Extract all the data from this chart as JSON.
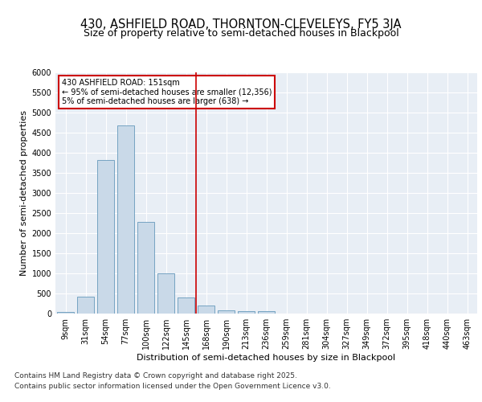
{
  "title": "430, ASHFIELD ROAD, THORNTON-CLEVELEYS, FY5 3JA",
  "subtitle": "Size of property relative to semi-detached houses in Blackpool",
  "xlabel": "Distribution of semi-detached houses by size in Blackpool",
  "ylabel": "Number of semi-detached properties",
  "categories": [
    "9sqm",
    "31sqm",
    "54sqm",
    "77sqm",
    "100sqm",
    "122sqm",
    "145sqm",
    "168sqm",
    "190sqm",
    "213sqm",
    "236sqm",
    "259sqm",
    "281sqm",
    "304sqm",
    "327sqm",
    "349sqm",
    "372sqm",
    "395sqm",
    "418sqm",
    "440sqm",
    "463sqm"
  ],
  "values": [
    50,
    430,
    3820,
    4680,
    2280,
    1000,
    400,
    200,
    90,
    70,
    70,
    0,
    0,
    0,
    0,
    0,
    0,
    0,
    0,
    0,
    0
  ],
  "bar_color": "#c9d9e8",
  "bar_edge_color": "#6699bb",
  "vline_pos": 6.5,
  "vline_color": "#cc0000",
  "annotation_title": "430 ASHFIELD ROAD: 151sqm",
  "annotation_line1": "← 95% of semi-detached houses are smaller (12,356)",
  "annotation_line2": "5% of semi-detached houses are larger (638) →",
  "annotation_box_facecolor": "#ffffff",
  "annotation_box_edgecolor": "#cc0000",
  "footnote1": "Contains HM Land Registry data © Crown copyright and database right 2025.",
  "footnote2": "Contains public sector information licensed under the Open Government Licence v3.0.",
  "ylim": [
    0,
    6000
  ],
  "yticks": [
    0,
    500,
    1000,
    1500,
    2000,
    2500,
    3000,
    3500,
    4000,
    4500,
    5000,
    5500,
    6000
  ],
  "bg_color": "#e8eef5",
  "fig_bg": "#ffffff",
  "title_fontsize": 10.5,
  "subtitle_fontsize": 9,
  "axis_label_fontsize": 8,
  "tick_fontsize": 7,
  "annotation_fontsize": 7,
  "footnote_fontsize": 6.5
}
